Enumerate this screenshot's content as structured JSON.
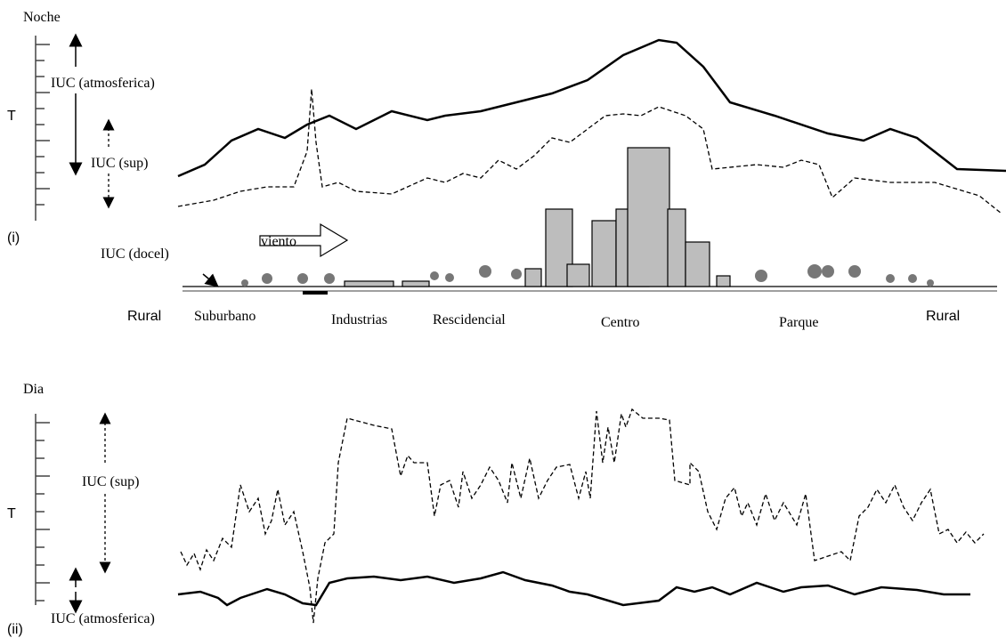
{
  "panels": [
    {
      "title": "Noche",
      "axis_label": "T",
      "panel_label": "(i)",
      "annotations": [
        "IUC (atmosferica)",
        "IUC (sup)",
        "IUC (docel)"
      ],
      "wind_label": "viento",
      "zones": [
        "Rural",
        "Suburbano",
        "Industrias",
        "Rescidencial",
        "Centro",
        "Parque",
        "Rural"
      ]
    },
    {
      "title": "Dia",
      "axis_label": "T",
      "panel_label": "(ii)",
      "annotations": [
        "IUC (sup)",
        "IUC (atmosferica)"
      ]
    }
  ]
}
